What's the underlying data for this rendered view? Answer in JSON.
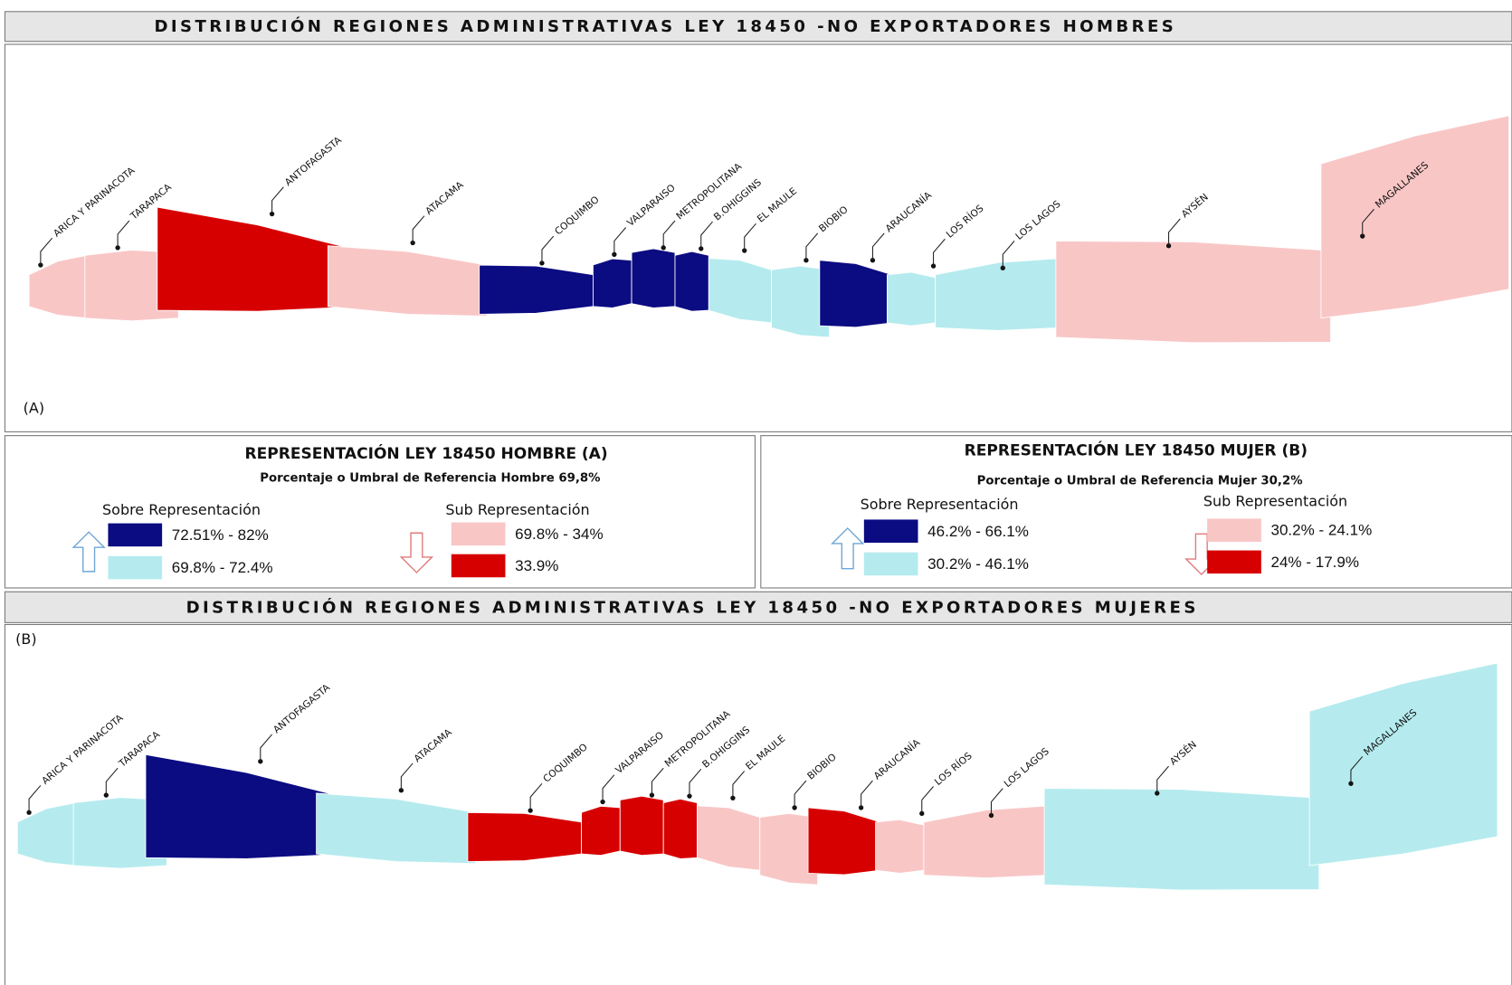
{
  "maps": [
    {
      "title": "DISTRIBUCIÓN REGIONES ADMINISTRATIVAS LEY 18450 -NO EXPORTADORES HOMBRES",
      "label": "(A)",
      "regions": [
        {
          "name": "ARICA Y PARINACOTA",
          "color": "#f9c6c6"
        },
        {
          "name": "TARAPACA",
          "color": "#f9c6c6"
        },
        {
          "name": "ANTOFAGASTA",
          "color": "#d70000"
        },
        {
          "name": "ATACAMA",
          "color": "#f9c6c6"
        },
        {
          "name": "COQUIMBO",
          "color": "#0b0b82"
        },
        {
          "name": "VALPARAISO",
          "color": "#0b0b82"
        },
        {
          "name": "METROPOLITANA",
          "color": "#0b0b82"
        },
        {
          "name": "B.OHIGGINS",
          "color": "#0b0b82"
        },
        {
          "name": "EL MAULE",
          "color": "#b5ebee"
        },
        {
          "name": "BIOBIO",
          "color": "#b5ebee"
        },
        {
          "name": "ARAUCANÍA",
          "color": "#0b0b82"
        },
        {
          "name": "LOS RÍOS",
          "color": "#b5ebee"
        },
        {
          "name": "LOS LAGOS",
          "color": "#b5ebee"
        },
        {
          "name": "AYSÉN",
          "color": "#f9c6c6"
        },
        {
          "name": "MAGALLANES",
          "color": "#f9c6c6"
        }
      ]
    },
    {
      "title": "DISTRIBUCIÓN REGIONES ADMINISTRATIVAS LEY 18450 -NO EXPORTADORES MUJERES",
      "label": "(B)",
      "regions": [
        {
          "name": "ARICA Y PARINACOTA",
          "color": "#b5ebee"
        },
        {
          "name": "TARAPACA",
          "color": "#b5ebee"
        },
        {
          "name": "ANTOFAGASTA",
          "color": "#0b0b82"
        },
        {
          "name": "ATACAMA",
          "color": "#b5ebee"
        },
        {
          "name": "COQUIMBO",
          "color": "#d70000"
        },
        {
          "name": "VALPARAISO",
          "color": "#d70000"
        },
        {
          "name": "METROPOLITANA",
          "color": "#d70000"
        },
        {
          "name": "B.OHIGGINS",
          "color": "#d70000"
        },
        {
          "name": "EL MAULE",
          "color": "#f9c6c6"
        },
        {
          "name": "BIOBIO",
          "color": "#f9c6c6"
        },
        {
          "name": "ARAUCANÍA",
          "color": "#d70000"
        },
        {
          "name": "LOS RÍOS",
          "color": "#f9c6c6"
        },
        {
          "name": "LOS LAGOS",
          "color": "#f9c6c6"
        },
        {
          "name": "AYSÉN",
          "color": "#b5ebee"
        },
        {
          "name": "MAGALLANES",
          "color": "#b5ebee"
        }
      ]
    }
  ],
  "legends": [
    {
      "title": "REPRESENTACIÓN LEY 18450  HOMBRE (A)",
      "subtitle": "Porcentaje o Umbral de Referencia Hombre 69,8%",
      "over_label": "Sobre  Representación",
      "under_label": "Sub Representación",
      "entries": [
        {
          "label": "72.51% - 82%",
          "color": "#0b0b82"
        },
        {
          "label": "69.8% - 72.4%",
          "color": "#b5ebee"
        },
        {
          "label": "69.8% - 34%",
          "color": "#f9c6c6"
        },
        {
          "label": "33.9%",
          "color": "#d70000"
        }
      ]
    },
    {
      "title": "REPRESENTACIÓN LEY 18450 MUJER (B)",
      "subtitle": "Porcentaje o Umbral de Referencia Mujer 30,2%",
      "over_label": "Sobre  Representación",
      "under_label": "Sub Representación",
      "entries": [
        {
          "label": "46.2% - 66.1%",
          "color": "#0b0b82"
        },
        {
          "label": "30.2% - 46.1%",
          "color": "#b5ebee"
        },
        {
          "label": "30.2% - 24.1%",
          "color": "#f9c6c6"
        },
        {
          "label": "24% - 17.9%",
          "color": "#d70000"
        }
      ]
    }
  ]
}
